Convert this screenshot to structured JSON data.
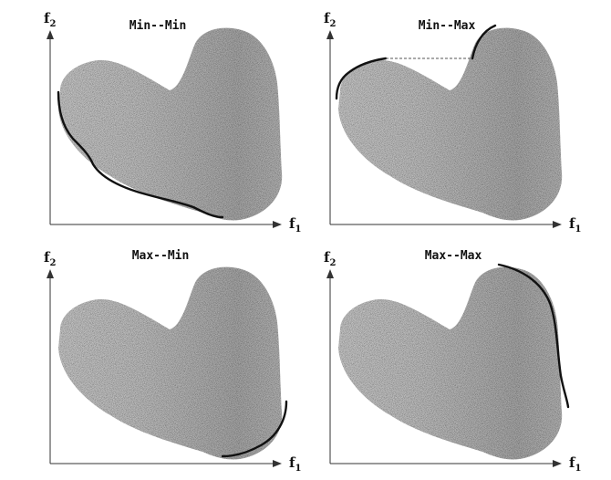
{
  "figure": {
    "colors": {
      "background": "#ffffff",
      "region_fill": "#c4c4c4",
      "region_shade": "#a6a6a6",
      "front": "#111111",
      "axis": "#333333"
    },
    "panels": [
      {
        "id": "min-min",
        "title": "Min--Min",
        "x_label": "f",
        "x_sub": "1",
        "y_label": "f",
        "y_sub": "2",
        "front": "lower-left"
      },
      {
        "id": "min-max",
        "title": "Min--Max",
        "x_label": "f",
        "x_sub": "1",
        "y_label": "f",
        "y_sub": "2",
        "front": "upper-left"
      },
      {
        "id": "max-min",
        "title": "Max--Min",
        "x_label": "f",
        "x_sub": "1",
        "y_label": "f",
        "y_sub": "2",
        "front": "lower-right"
      },
      {
        "id": "max-max",
        "title": "Max--Max",
        "x_label": "f",
        "x_sub": "1",
        "y_label": "f",
        "y_sub": "2",
        "front": "upper-right"
      }
    ]
  }
}
